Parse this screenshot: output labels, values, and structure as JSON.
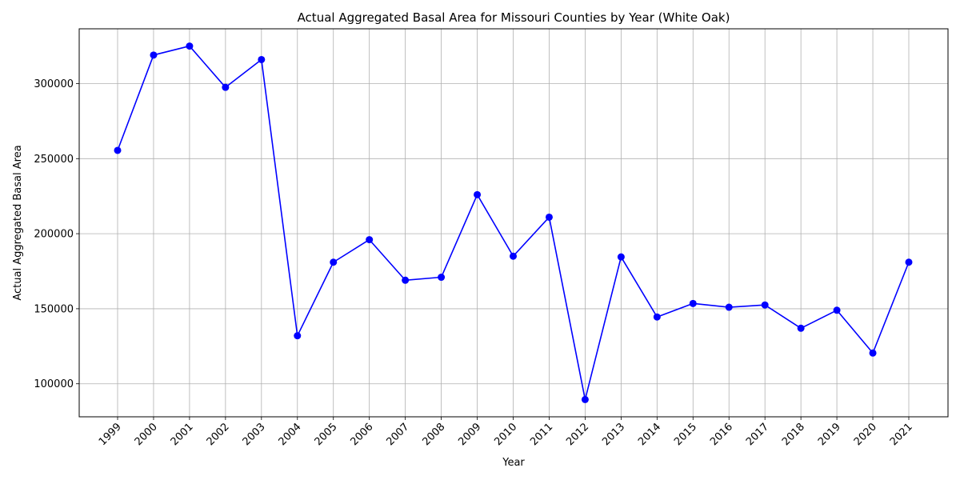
{
  "chart_data": {
    "type": "line",
    "title": "Actual Aggregated Basal Area for Missouri Counties by Year (White Oak)",
    "xlabel": "Year",
    "ylabel": "Actual Aggregated Basal Area",
    "x": [
      "1999",
      "2000",
      "2001",
      "2002",
      "2003",
      "2004",
      "2005",
      "2006",
      "2007",
      "2008",
      "2009",
      "2010",
      "2011",
      "2012",
      "2013",
      "2014",
      "2015",
      "2016",
      "2017",
      "2018",
      "2019",
      "2020",
      "2021"
    ],
    "series": [
      {
        "values": [
          255500,
          319000,
          325000,
          297500,
          316000,
          132000,
          181000,
          196000,
          169000,
          171000,
          226000,
          185000,
          211000,
          89500,
          184500,
          144500,
          153500,
          151000,
          152500,
          137000,
          149000,
          120500,
          181000
        ],
        "color": "#0000ff",
        "marker": "circle"
      }
    ],
    "yticks": [
      100000,
      150000,
      200000,
      250000,
      300000
    ],
    "ylim": [
      78000,
      336500
    ],
    "grid": true,
    "x_tick_rotation": 45
  }
}
